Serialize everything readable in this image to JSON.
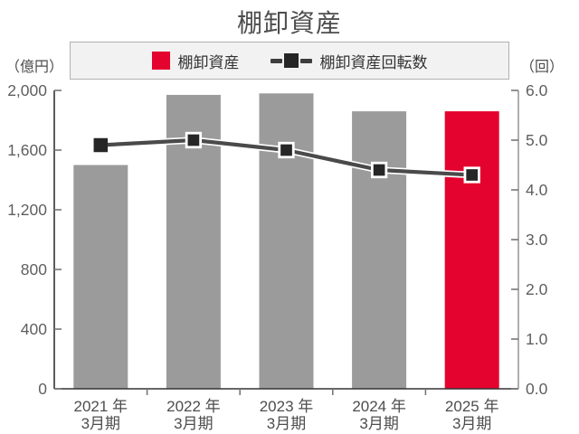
{
  "chart_data": {
    "type": "bar+line",
    "title": "棚卸資産",
    "categories": [
      {
        "line1": "2021 年",
        "line2": "3月期"
      },
      {
        "line1": "2022 年",
        "line2": "3月期"
      },
      {
        "line1": "2023 年",
        "line2": "3月期"
      },
      {
        "line1": "2024 年",
        "line2": "3月期"
      },
      {
        "line1": "2025 年",
        "line2": "3月期"
      }
    ],
    "series": [
      {
        "name": "棚卸資産",
        "type": "bar",
        "axis": "left",
        "unit": "億円",
        "values": [
          1500,
          1970,
          1980,
          1860,
          1860
        ],
        "point_colors": [
          "#9b9b9b",
          "#9b9b9b",
          "#9b9b9b",
          "#9b9b9b",
          "#e4032e"
        ]
      },
      {
        "name": "棚卸資産回転数",
        "type": "line",
        "axis": "right",
        "unit": "回",
        "values": [
          4.9,
          5.0,
          4.8,
          4.4,
          4.3
        ],
        "color": "#4a4a4a",
        "marker": "square",
        "marker_color": "#262626"
      }
    ],
    "left_axis": {
      "label": "（億円）",
      "min": 0,
      "max": 2000,
      "step": 400,
      "tick_labels": [
        "0",
        "400",
        "800",
        "1,200",
        "1,600",
        "2,000"
      ]
    },
    "right_axis": {
      "label": "（回）",
      "min": 0,
      "max": 6,
      "step": 1,
      "tick_labels": [
        "0.0",
        "1.0",
        "2.0",
        "3.0",
        "4.0",
        "5.0",
        "6.0"
      ]
    },
    "grid": false,
    "legend_position": "top-center"
  },
  "colors": {
    "bar_gray": "#9b9b9b",
    "bar_red": "#e4032e",
    "line": "#4a4a4a",
    "line_casing": "#ffffff",
    "marker_fill": "#262626",
    "marker_stroke": "#ffffff",
    "axis_dark": "#333333",
    "axis_light": "#9a9a9a",
    "tick": "#777777",
    "tick_label": "#5f5f5f",
    "category_label": "#4d4d4d",
    "title_color": "#4d4d4d",
    "legend_bg": "#f2f2f2",
    "legend_border": "#b1b1b1"
  }
}
